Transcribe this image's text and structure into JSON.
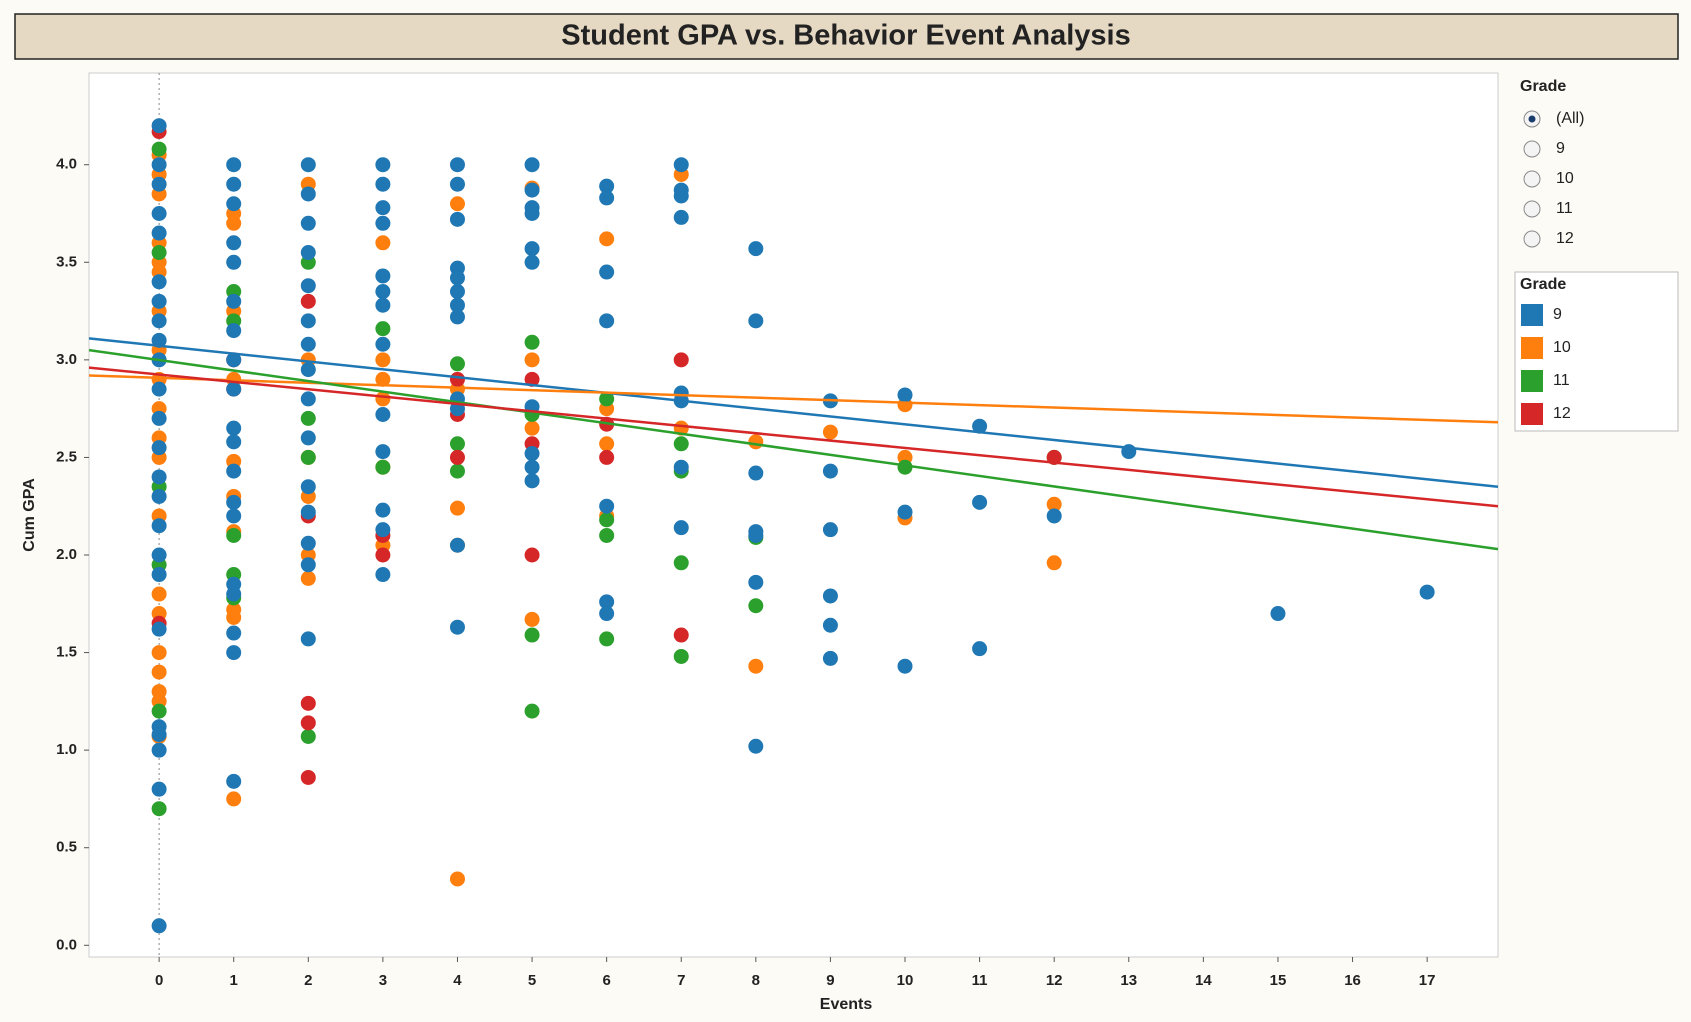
{
  "chart_data": {
    "type": "scatter",
    "title": "Student GPA vs. Behavior Event Analysis",
    "x_label": "Events",
    "y_label": "Cum GPA",
    "xlim": [
      -0.94,
      17.95
    ],
    "ylim": [
      -0.06,
      4.47
    ],
    "xticks": [
      0,
      1,
      2,
      3,
      4,
      5,
      6,
      7,
      8,
      9,
      10,
      11,
      12,
      13,
      14,
      15,
      16,
      17
    ],
    "yticks": [
      {
        "value": 0,
        "label": "0.0"
      },
      {
        "value": 0.5,
        "label": "0.5"
      },
      {
        "value": 1,
        "label": "1.0"
      },
      {
        "value": 1.5,
        "label": "1.5"
      },
      {
        "value": 2,
        "label": "2.0"
      },
      {
        "value": 2.5,
        "label": "2.5"
      },
      {
        "value": 3,
        "label": "3.0"
      },
      {
        "value": 3.5,
        "label": "3.5"
      },
      {
        "value": 4,
        "label": "4.0"
      }
    ],
    "legend_title": "Grade",
    "filter": {
      "title": "Grade",
      "options": [
        "(All)",
        "9",
        "10",
        "11",
        "12"
      ],
      "selected": 0
    },
    "series": [
      {
        "name": "9",
        "color": "#1f77b4",
        "trend": [
          3.11,
          2.35
        ],
        "x": [
          0,
          0,
          0,
          0,
          0,
          0,
          0,
          0,
          0,
          0,
          0,
          0,
          0,
          0,
          0,
          0,
          0,
          0,
          0,
          0,
          0,
          0,
          0,
          0,
          1,
          1,
          1,
          1,
          1,
          1,
          1,
          1,
          1,
          1,
          1,
          1,
          1,
          1,
          1,
          1,
          1,
          1,
          1,
          2,
          2,
          2,
          2,
          2,
          2,
          2,
          2,
          2,
          2,
          2,
          2,
          2,
          2,
          2,
          3,
          3,
          3,
          3,
          3,
          3,
          3,
          3,
          3,
          3,
          3,
          3,
          3,
          4,
          4,
          4,
          4,
          4,
          4,
          4,
          4,
          4,
          4,
          4,
          4,
          5,
          5,
          5,
          5,
          5,
          5,
          5,
          5,
          5,
          5,
          6,
          6,
          6,
          6,
          6,
          6,
          6,
          7,
          7,
          7,
          7,
          7,
          7,
          7,
          7,
          8,
          8,
          8,
          8,
          8,
          8,
          8,
          9,
          9,
          9,
          9,
          9,
          9,
          10,
          10,
          10,
          11,
          11,
          11,
          12,
          13,
          15,
          17
        ],
        "values": [
          4.2,
          4.0,
          3.9,
          3.75,
          3.65,
          3.4,
          3.3,
          3.2,
          3.1,
          3.0,
          2.85,
          2.7,
          2.55,
          2.4,
          2.3,
          2.15,
          2.0,
          1.9,
          1.62,
          1.12,
          1.08,
          1.0,
          0.8,
          0.1,
          4.0,
          3.9,
          3.8,
          3.6,
          3.5,
          3.3,
          3.15,
          3.0,
          2.85,
          2.65,
          2.58,
          2.43,
          2.27,
          2.2,
          1.85,
          1.8,
          1.6,
          1.5,
          0.84,
          4.0,
          3.85,
          3.7,
          3.55,
          3.38,
          3.2,
          3.08,
          2.95,
          2.8,
          2.6,
          2.35,
          2.22,
          2.06,
          1.95,
          1.57,
          4.0,
          3.9,
          3.78,
          3.7,
          3.43,
          3.35,
          3.28,
          3.08,
          2.72,
          2.53,
          2.23,
          2.13,
          1.9,
          4.0,
          3.9,
          3.72,
          3.47,
          3.42,
          3.35,
          3.28,
          3.22,
          2.8,
          2.75,
          2.05,
          1.63,
          4.0,
          3.87,
          3.78,
          3.75,
          3.57,
          3.5,
          2.76,
          2.52,
          2.45,
          2.38,
          3.89,
          3.83,
          3.45,
          3.2,
          2.25,
          1.76,
          1.7,
          4.0,
          3.87,
          3.84,
          3.73,
          2.83,
          2.79,
          2.45,
          2.14,
          3.57,
          3.2,
          2.42,
          2.12,
          2.1,
          1.86,
          1.02,
          2.79,
          2.43,
          2.13,
          1.79,
          1.64,
          1.47,
          2.82,
          2.22,
          1.43,
          2.66,
          2.27,
          1.52,
          2.2,
          2.53,
          1.7,
          1.81
        ]
      },
      {
        "name": "10",
        "color": "#ff7f0e",
        "trend": [
          2.92,
          2.68
        ],
        "x": [
          0,
          0,
          0,
          0,
          0,
          0,
          0,
          0,
          0,
          0,
          0,
          0,
          0,
          0,
          0,
          0,
          0,
          0,
          0,
          0,
          1,
          1,
          1,
          1,
          1,
          1,
          1,
          1,
          1,
          1,
          2,
          2,
          2,
          2,
          2,
          2,
          3,
          3,
          3,
          3,
          3,
          3,
          4,
          4,
          4,
          4,
          4,
          5,
          5,
          5,
          5,
          6,
          6,
          6,
          6,
          7,
          7,
          8,
          8,
          9,
          10,
          10,
          10,
          12,
          12
        ],
        "values": [
          4.05,
          3.95,
          3.85,
          3.6,
          3.5,
          3.45,
          3.25,
          3.05,
          2.9,
          2.75,
          2.6,
          2.5,
          2.2,
          1.8,
          1.7,
          1.5,
          1.4,
          1.3,
          1.25,
          1.07,
          3.75,
          3.7,
          3.25,
          2.9,
          2.48,
          2.3,
          2.12,
          1.72,
          1.68,
          0.75,
          3.9,
          3.0,
          2.5,
          2.3,
          2.0,
          1.88,
          3.6,
          3.0,
          2.9,
          2.8,
          2.45,
          2.05,
          3.8,
          2.85,
          2.24,
          2.05,
          0.34,
          3.88,
          3.0,
          2.65,
          1.67,
          3.62,
          2.75,
          2.57,
          2.2,
          3.95,
          2.65,
          2.58,
          1.43,
          2.63,
          2.77,
          2.5,
          2.19,
          2.26,
          1.96
        ]
      },
      {
        "name": "11",
        "color": "#2ca02c",
        "trend": [
          3.05,
          2.03
        ],
        "x": [
          0,
          0,
          0,
          0,
          0,
          0,
          1,
          1,
          1,
          1,
          1,
          2,
          2,
          2,
          2,
          3,
          3,
          4,
          4,
          4,
          5,
          5,
          5,
          5,
          6,
          6,
          6,
          6,
          7,
          7,
          7,
          7,
          8,
          8,
          10,
          12
        ],
        "values": [
          4.08,
          3.55,
          2.35,
          1.95,
          1.2,
          0.7,
          3.35,
          3.2,
          2.1,
          1.9,
          1.78,
          3.5,
          2.7,
          2.5,
          1.07,
          3.16,
          2.45,
          2.98,
          2.57,
          2.43,
          3.09,
          2.72,
          1.59,
          1.2,
          2.8,
          2.18,
          2.1,
          1.57,
          2.57,
          2.43,
          1.96,
          1.48,
          2.09,
          1.74,
          2.45,
          2.5
        ]
      },
      {
        "name": "12",
        "color": "#d62728",
        "trend": [
          2.96,
          2.25
        ],
        "x": [
          0,
          0,
          1,
          1,
          2,
          2,
          2,
          2,
          2,
          3,
          3,
          4,
          4,
          4,
          5,
          5,
          5,
          6,
          6,
          7,
          7,
          12
        ],
        "values": [
          4.17,
          1.65,
          3.0,
          2.85,
          3.3,
          2.2,
          1.24,
          1.14,
          0.86,
          2.1,
          2.0,
          2.9,
          2.72,
          2.5,
          2.9,
          2.57,
          2.0,
          2.67,
          2.5,
          3.0,
          1.59,
          2.5
        ]
      }
    ]
  }
}
